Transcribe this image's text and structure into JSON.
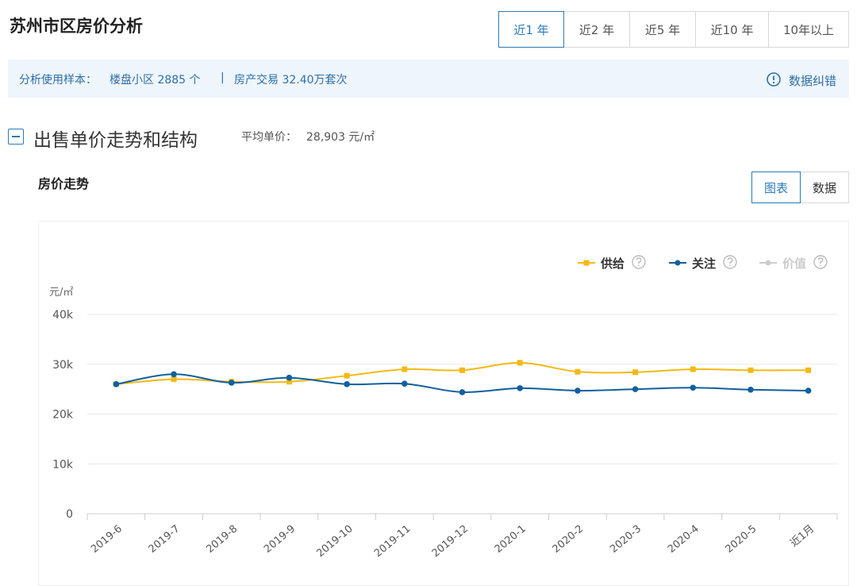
{
  "header": {
    "title": "苏州市区房价分析",
    "tabs": [
      "近1 年",
      "近2 年",
      "近5 年",
      "近10 年",
      "10年以上"
    ]
  },
  "info": {
    "label": "分析使用样本：",
    "communities": "楼盘小区 2885 个",
    "separator": "|",
    "transactions": "房产交易 32.40万套次",
    "report": "数据纠错"
  },
  "section": {
    "title": "出售单价走势和结构",
    "avg_label": "平均单价：",
    "avg_value": "28,903 元/㎡"
  },
  "panel": {
    "title": "房价走势",
    "views": [
      "图表",
      "数据"
    ]
  },
  "chart_data": {
    "type": "line",
    "y_label": "元/㎡",
    "categories": [
      "2019-6",
      "2019-7",
      "2019-8",
      "2019-9",
      "2019-10",
      "2019-11",
      "2019-12",
      "2020-1",
      "2020-2",
      "2020-3",
      "2020-4",
      "2020-5",
      "近1月"
    ],
    "series": [
      {
        "name": "供给",
        "color": "#f5b914",
        "marker": "square",
        "values": [
          26000,
          27000,
          26500,
          26500,
          27700,
          29000,
          28800,
          30300,
          28500,
          28400,
          29000,
          28800,
          28800
        ]
      },
      {
        "name": "关注",
        "color": "#11609e",
        "marker": "circle",
        "values": [
          26000,
          28000,
          26300,
          27300,
          26000,
          26100,
          24400,
          25200,
          24700,
          25000,
          25300,
          24900,
          24700
        ]
      },
      {
        "name": "价值",
        "color": "#cccccc",
        "marker": "circle",
        "values": [
          null,
          null,
          null,
          null,
          null,
          null,
          null,
          null,
          null,
          null,
          null,
          null,
          null
        ]
      }
    ],
    "ylim": [
      0,
      40000
    ],
    "yticks": [
      0,
      {
        "value": 10000,
        "label": "10k"
      },
      {
        "value": 20000,
        "label": "20k"
      },
      {
        "value": 30000,
        "label": "30k"
      },
      {
        "value": 40000,
        "label": "40k"
      }
    ],
    "grid": true,
    "legend": "top-right",
    "smooth": true
  }
}
